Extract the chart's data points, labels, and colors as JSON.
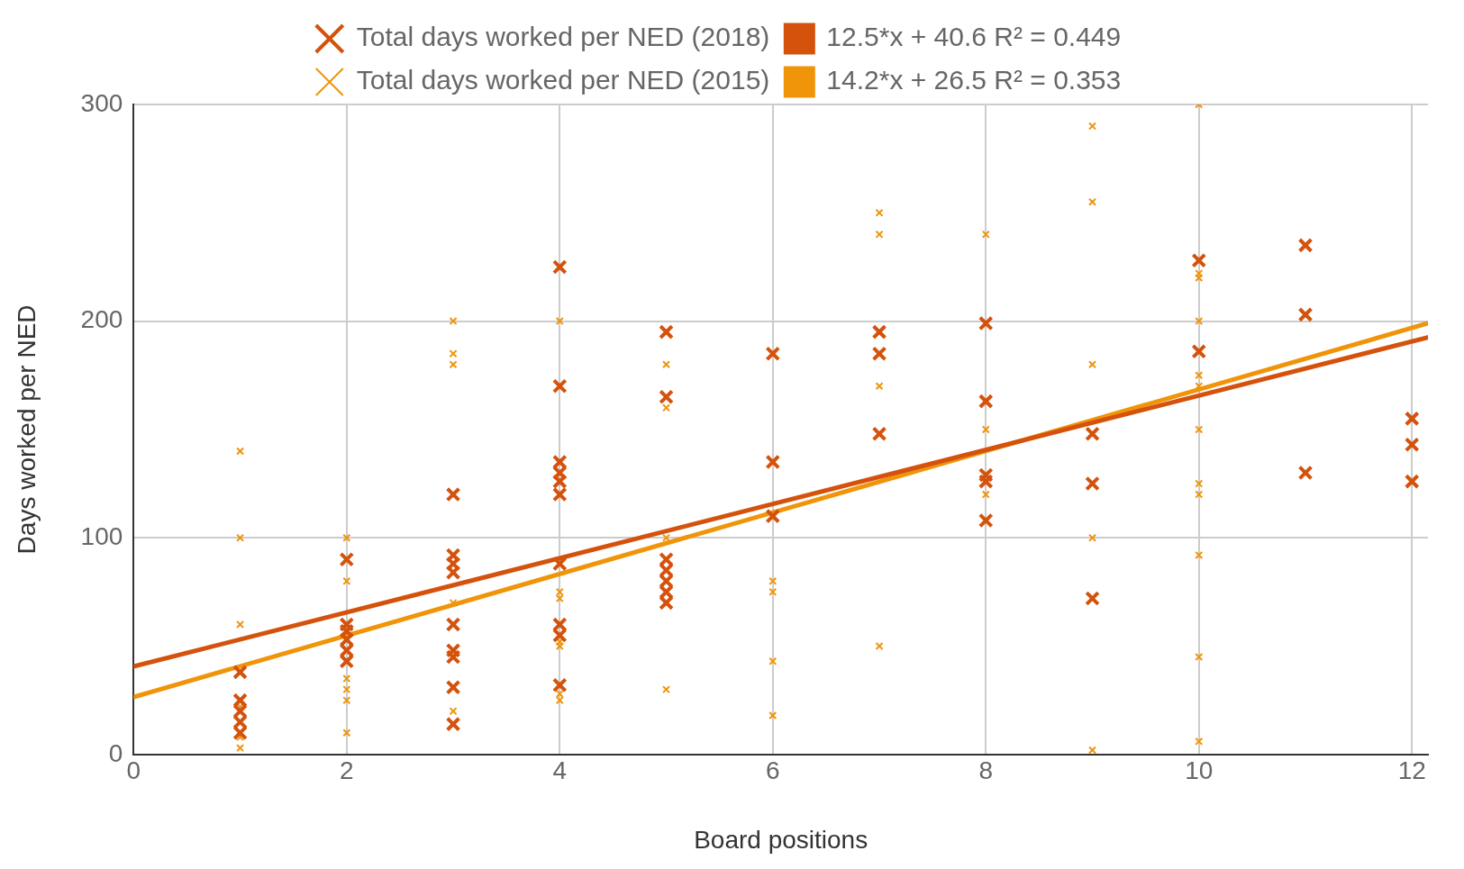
{
  "chart_data": {
    "type": "scatter",
    "xlabel": "Board positions",
    "ylabel": "Days worked per NED",
    "xlim": [
      0,
      12.15
    ],
    "xticks": [
      0,
      2,
      4,
      6,
      8,
      10,
      12
    ],
    "ylim": [
      0,
      300
    ],
    "yticks": [
      0,
      100,
      200,
      300
    ],
    "grid": true,
    "legend": "top",
    "series": [
      {
        "name": "Total days worked per NED (2018)",
        "color": "#d4520c",
        "marker": "cross",
        "x": [
          1,
          1,
          1,
          1,
          1,
          2,
          2,
          2,
          2,
          2,
          2,
          3,
          3,
          3,
          3,
          3,
          3,
          3,
          3,
          3,
          4,
          4,
          4,
          4,
          4,
          4,
          4,
          4,
          4,
          4,
          5,
          5,
          5,
          5,
          5,
          5,
          5,
          6,
          6,
          6,
          7,
          7,
          7,
          8,
          8,
          8,
          8,
          8,
          9,
          9,
          9,
          10,
          10,
          11,
          11,
          11,
          12,
          12,
          12
        ],
        "values": [
          38,
          25,
          20,
          15,
          10,
          90,
          60,
          57,
          53,
          48,
          43,
          120,
          92,
          88,
          84,
          60,
          48,
          45,
          31,
          14,
          225,
          170,
          135,
          130,
          126,
          120,
          88,
          60,
          55,
          32,
          195,
          165,
          90,
          85,
          80,
          75,
          70,
          185,
          135,
          110,
          195,
          185,
          148,
          199,
          163,
          129,
          126,
          108,
          148,
          125,
          72,
          228,
          186,
          235,
          203,
          130,
          155,
          143,
          126
        ]
      },
      {
        "name": "12.5*x + 40.6 R² = 0.449",
        "type": "line",
        "color": "#d4520c",
        "x": [
          0,
          12.15
        ],
        "values": [
          40.6,
          192.5
        ]
      },
      {
        "name": "Total days worked per NED (2015)",
        "color": "#f0940a",
        "marker": "cross",
        "x": [
          1,
          1,
          1,
          1,
          1,
          1,
          2,
          2,
          2,
          2,
          2,
          2,
          3,
          3,
          3,
          3,
          3,
          4,
          4,
          4,
          4,
          4,
          4,
          4,
          5,
          5,
          5,
          5,
          6,
          6,
          6,
          6,
          7,
          7,
          7,
          7,
          8,
          8,
          8,
          9,
          9,
          9,
          9,
          9,
          10,
          10,
          10,
          10,
          10,
          10,
          10,
          10,
          10,
          10,
          10,
          10
        ],
        "values": [
          140,
          100,
          60,
          22,
          8,
          3,
          100,
          80,
          35,
          30,
          25,
          10,
          200,
          185,
          180,
          70,
          20,
          200,
          75,
          72,
          52,
          50,
          28,
          25,
          180,
          160,
          100,
          30,
          80,
          75,
          43,
          18,
          250,
          240,
          170,
          50,
          240,
          150,
          120,
          290,
          255,
          180,
          100,
          2,
          300,
          222,
          220,
          200,
          175,
          170,
          150,
          125,
          120,
          92,
          45,
          6
        ]
      },
      {
        "name": "14.2*x + 26.5 R² = 0.353",
        "type": "line",
        "color": "#f0940a",
        "x": [
          0,
          12.15
        ],
        "values": [
          26.5,
          199
        ]
      }
    ]
  }
}
